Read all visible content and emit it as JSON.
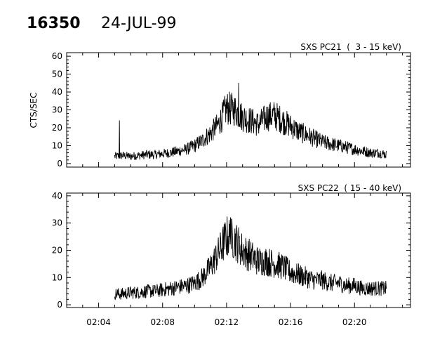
{
  "header": {
    "event_number": "16350",
    "date": "24-JUL-99"
  },
  "chart_data": [
    {
      "type": "line",
      "title": "SXS PC21  (  3 - 15 keV)",
      "ylabel": "CTS/SEC",
      "xlabel": "",
      "xlim": [
        "02:02:00",
        "02:23:30"
      ],
      "ylim": [
        -2,
        62
      ],
      "y_ticks": [
        "0",
        "10",
        "20",
        "30",
        "40",
        "50",
        "60"
      ],
      "x_tick_labels": [],
      "series": [
        {
          "color": "#000000",
          "x": [
            "02:05:00",
            "02:05:30",
            "02:06:00",
            "02:06:30",
            "02:07:00",
            "02:07:30",
            "02:08:00",
            "02:08:30",
            "02:09:00",
            "02:09:30",
            "02:10:00",
            "02:10:30",
            "02:11:00",
            "02:11:30",
            "02:12:00",
            "02:12:30",
            "02:13:00",
            "02:13:30",
            "02:14:00",
            "02:14:30",
            "02:15:00",
            "02:15:30",
            "02:16:00",
            "02:16:30",
            "02:17:00",
            "02:17:30",
            "02:18:00",
            "02:18:30",
            "02:19:00",
            "02:19:30",
            "02:20:00",
            "02:20:30",
            "02:21:00",
            "02:21:30",
            "02:22:00"
          ],
          "y": [
            4,
            4.5,
            4,
            4.5,
            5,
            5,
            5.5,
            6,
            7,
            8,
            10,
            13,
            17,
            22,
            31,
            30,
            26,
            24,
            22,
            26,
            27,
            24,
            21,
            18,
            16,
            14,
            12,
            11,
            10,
            9,
            8,
            7,
            6,
            6,
            5
          ],
          "spikes": [
            {
              "x": "02:05:18",
              "y": 24
            },
            {
              "x": "02:12:45",
              "y": 45
            }
          ]
        }
      ]
    },
    {
      "type": "line",
      "title": "SXS PC22  ( 15 - 40 keV)",
      "ylabel": "",
      "xlabel": "",
      "xlim": [
        "02:02:00",
        "02:23:30"
      ],
      "ylim": [
        -1,
        41
      ],
      "y_ticks": [
        "0",
        "10",
        "20",
        "30",
        "40"
      ],
      "x_tick_labels": [
        "02:04",
        "02:08",
        "02:12",
        "02:16",
        "02:20"
      ],
      "series": [
        {
          "color": "#000000",
          "x": [
            "02:05:00",
            "02:05:30",
            "02:06:00",
            "02:06:30",
            "02:07:00",
            "02:07:30",
            "02:08:00",
            "02:08:30",
            "02:09:00",
            "02:09:30",
            "02:10:00",
            "02:10:30",
            "02:11:00",
            "02:11:30",
            "02:12:00",
            "02:12:30",
            "02:13:00",
            "02:13:30",
            "02:14:00",
            "02:14:30",
            "02:15:00",
            "02:15:30",
            "02:16:00",
            "02:16:30",
            "02:17:00",
            "02:17:30",
            "02:18:00",
            "02:18:30",
            "02:19:00",
            "02:19:30",
            "02:20:00",
            "02:20:30",
            "02:21:00",
            "02:21:30",
            "02:22:00"
          ],
          "y": [
            4,
            4,
            4.5,
            4.5,
            5,
            5,
            5.5,
            6,
            6.5,
            7,
            8,
            10,
            14,
            19,
            25,
            24,
            20,
            18,
            16,
            16,
            15,
            14,
            12,
            11,
            10,
            9,
            9,
            8,
            8,
            7,
            7,
            6,
            6,
            6,
            6
          ],
          "spikes": [
            {
              "x": "02:12:15",
              "y": 32
            }
          ]
        }
      ]
    }
  ]
}
